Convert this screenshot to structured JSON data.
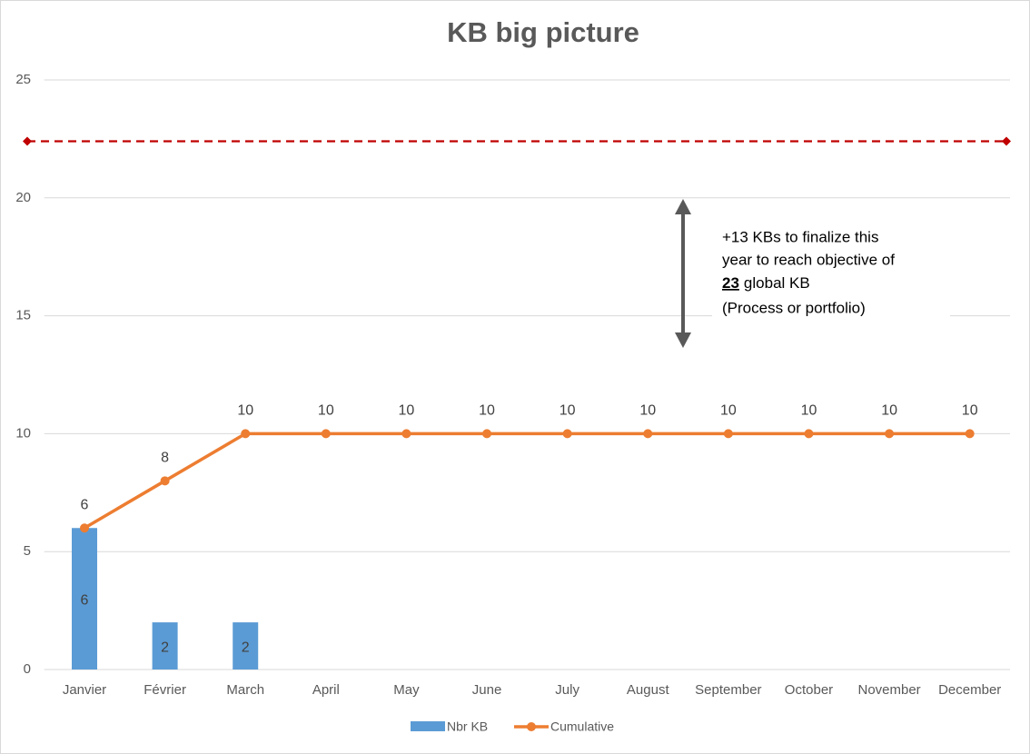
{
  "chart_data": {
    "type": "combo",
    "title": "KB big picture",
    "categories": [
      "Janvier",
      "Février",
      "March",
      "April",
      "May",
      "June",
      "July",
      "August",
      "September",
      "October",
      "November",
      "December"
    ],
    "series": [
      {
        "name": "Nbr KB",
        "type": "bar",
        "color": "#5b9bd5",
        "values": [
          6,
          2,
          2,
          null,
          null,
          null,
          null,
          null,
          null,
          null,
          null,
          null
        ]
      },
      {
        "name": "Cumulative",
        "type": "line",
        "color": "#ed7d31",
        "values": [
          6,
          8,
          10,
          10,
          10,
          10,
          10,
          10,
          10,
          10,
          10,
          10
        ]
      }
    ],
    "reference_line": {
      "value": 22.4,
      "color": "#c00000"
    },
    "annotation": {
      "line1": "+13 KBs to finalize this",
      "line2": "year to reach objective of",
      "objective": 23,
      "line3_rest": "global KB",
      "line4": "(Process or portfolio)"
    },
    "ylim": [
      0,
      25
    ],
    "yticks": [
      0,
      5,
      10,
      15,
      20,
      25
    ],
    "grid": true,
    "legend": "bottom"
  }
}
